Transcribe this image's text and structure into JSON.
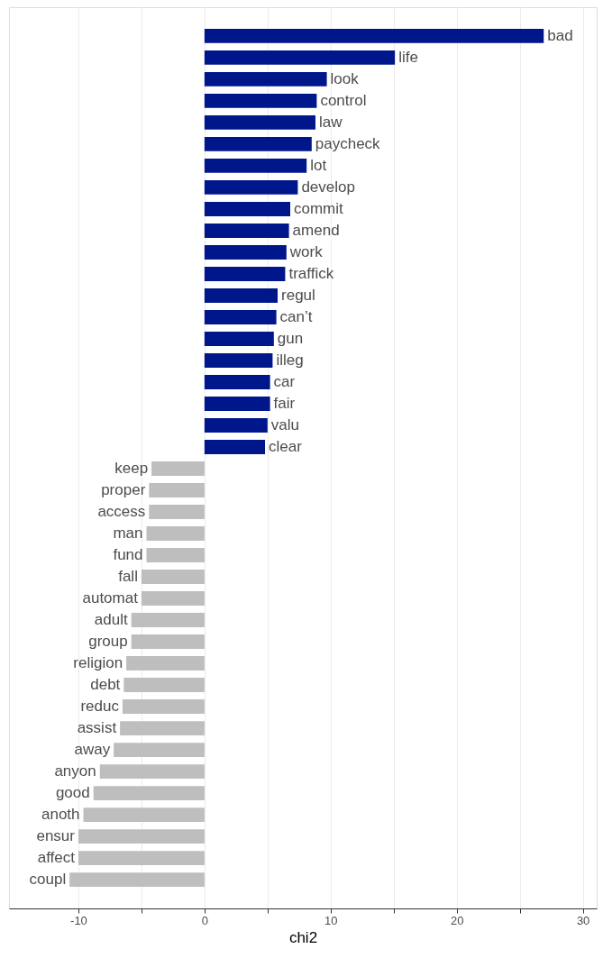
{
  "chart_data": {
    "type": "bar",
    "orientation": "horizontal",
    "xlabel": "chi2",
    "categories": [
      "bad",
      "life",
      "look",
      "control",
      "law",
      "paycheck",
      "lot",
      "develop",
      "commit",
      "amend",
      "work",
      "traffick",
      "regul",
      "can’t",
      "gun",
      "illeg",
      "car",
      "fair",
      "valu",
      "clear",
      "keep",
      "proper",
      "access",
      "man",
      "fund",
      "fall",
      "automat",
      "adult",
      "group",
      "religion",
      "debt",
      "reduc",
      "assist",
      "away",
      "anyon",
      "good",
      "anoth",
      "ensur",
      "affect",
      "coupl"
    ],
    "values": [
      26.9,
      15.1,
      9.7,
      8.9,
      8.8,
      8.5,
      8.1,
      7.4,
      6.8,
      6.7,
      6.5,
      6.4,
      5.8,
      5.7,
      5.5,
      5.4,
      5.2,
      5.2,
      5.0,
      4.8,
      -4.2,
      -4.4,
      -4.4,
      -4.6,
      -4.6,
      -5.0,
      -5.0,
      -5.8,
      -5.8,
      -6.2,
      -6.4,
      -6.5,
      -6.7,
      -7.2,
      -8.3,
      -8.8,
      -9.6,
      -10.0,
      -10.0,
      -10.7
    ],
    "colors": [
      "#00178c",
      "#00178c",
      "#00178c",
      "#00178c",
      "#00178c",
      "#00178c",
      "#00178c",
      "#00178c",
      "#00178c",
      "#00178c",
      "#00178c",
      "#00178c",
      "#00178c",
      "#00178c",
      "#00178c",
      "#00178c",
      "#00178c",
      "#00178c",
      "#00178c",
      "#00178c",
      "#bebebe",
      "#bebebe",
      "#bebebe",
      "#bebebe",
      "#bebebe",
      "#bebebe",
      "#bebebe",
      "#bebebe",
      "#bebebe",
      "#bebebe",
      "#bebebe",
      "#bebebe",
      "#bebebe",
      "#bebebe",
      "#bebebe",
      "#bebebe",
      "#bebebe",
      "#bebebe",
      "#bebebe",
      "#bebebe"
    ],
    "xlim": [
      -15.5,
      31.1
    ],
    "xticks": [
      -10,
      {
        "value": -5,
        "label": null
      },
      0,
      {
        "value": 5,
        "label": null
      },
      10,
      {
        "value": 15,
        "label": null
      },
      20,
      {
        "value": 25,
        "label": null
      },
      30
    ],
    "grid": "x",
    "tick_labels": "x"
  }
}
